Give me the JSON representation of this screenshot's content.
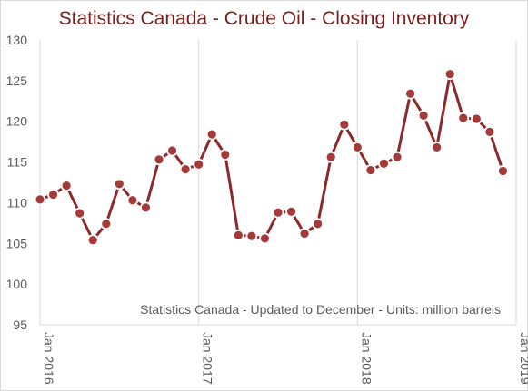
{
  "chart_data": {
    "type": "line",
    "title": "Statistics Canada - Crude Oil - Closing Inventory",
    "annotation": "Statistics Canada - Updated to December - Units: million barrels",
    "xlabel": "",
    "ylabel": "",
    "ylim": [
      95,
      130
    ],
    "yticks": [
      95,
      100,
      105,
      110,
      115,
      120,
      125,
      130
    ],
    "xticks": [
      "Jan 2016",
      "Jan 2017",
      "Jan 2018",
      "Jan 2019"
    ],
    "grid": "vertical",
    "legend": "none",
    "series_color": "#8b2a2a",
    "marker_fill": "#a43a3a",
    "x": [
      "2016-01",
      "2016-02",
      "2016-03",
      "2016-04",
      "2016-05",
      "2016-06",
      "2016-07",
      "2016-08",
      "2016-09",
      "2016-10",
      "2016-11",
      "2016-12",
      "2017-01",
      "2017-02",
      "2017-03",
      "2017-04",
      "2017-05",
      "2017-06",
      "2017-07",
      "2017-08",
      "2017-09",
      "2017-10",
      "2017-11",
      "2017-12",
      "2018-01",
      "2018-02",
      "2018-03",
      "2018-04",
      "2018-05",
      "2018-06",
      "2018-07",
      "2018-08",
      "2018-09",
      "2018-10",
      "2018-11",
      "2018-12"
    ],
    "values": [
      110.4,
      111.0,
      112.1,
      108.7,
      105.4,
      107.4,
      112.3,
      110.3,
      109.4,
      115.3,
      116.4,
      114.1,
      114.7,
      118.4,
      115.9,
      106.0,
      105.9,
      105.6,
      108.8,
      108.9,
      106.2,
      107.4,
      115.6,
      119.6,
      116.8,
      114.0,
      114.8,
      115.6,
      123.4,
      120.7,
      116.8,
      125.8,
      120.4,
      120.3,
      118.7,
      113.9
    ]
  }
}
